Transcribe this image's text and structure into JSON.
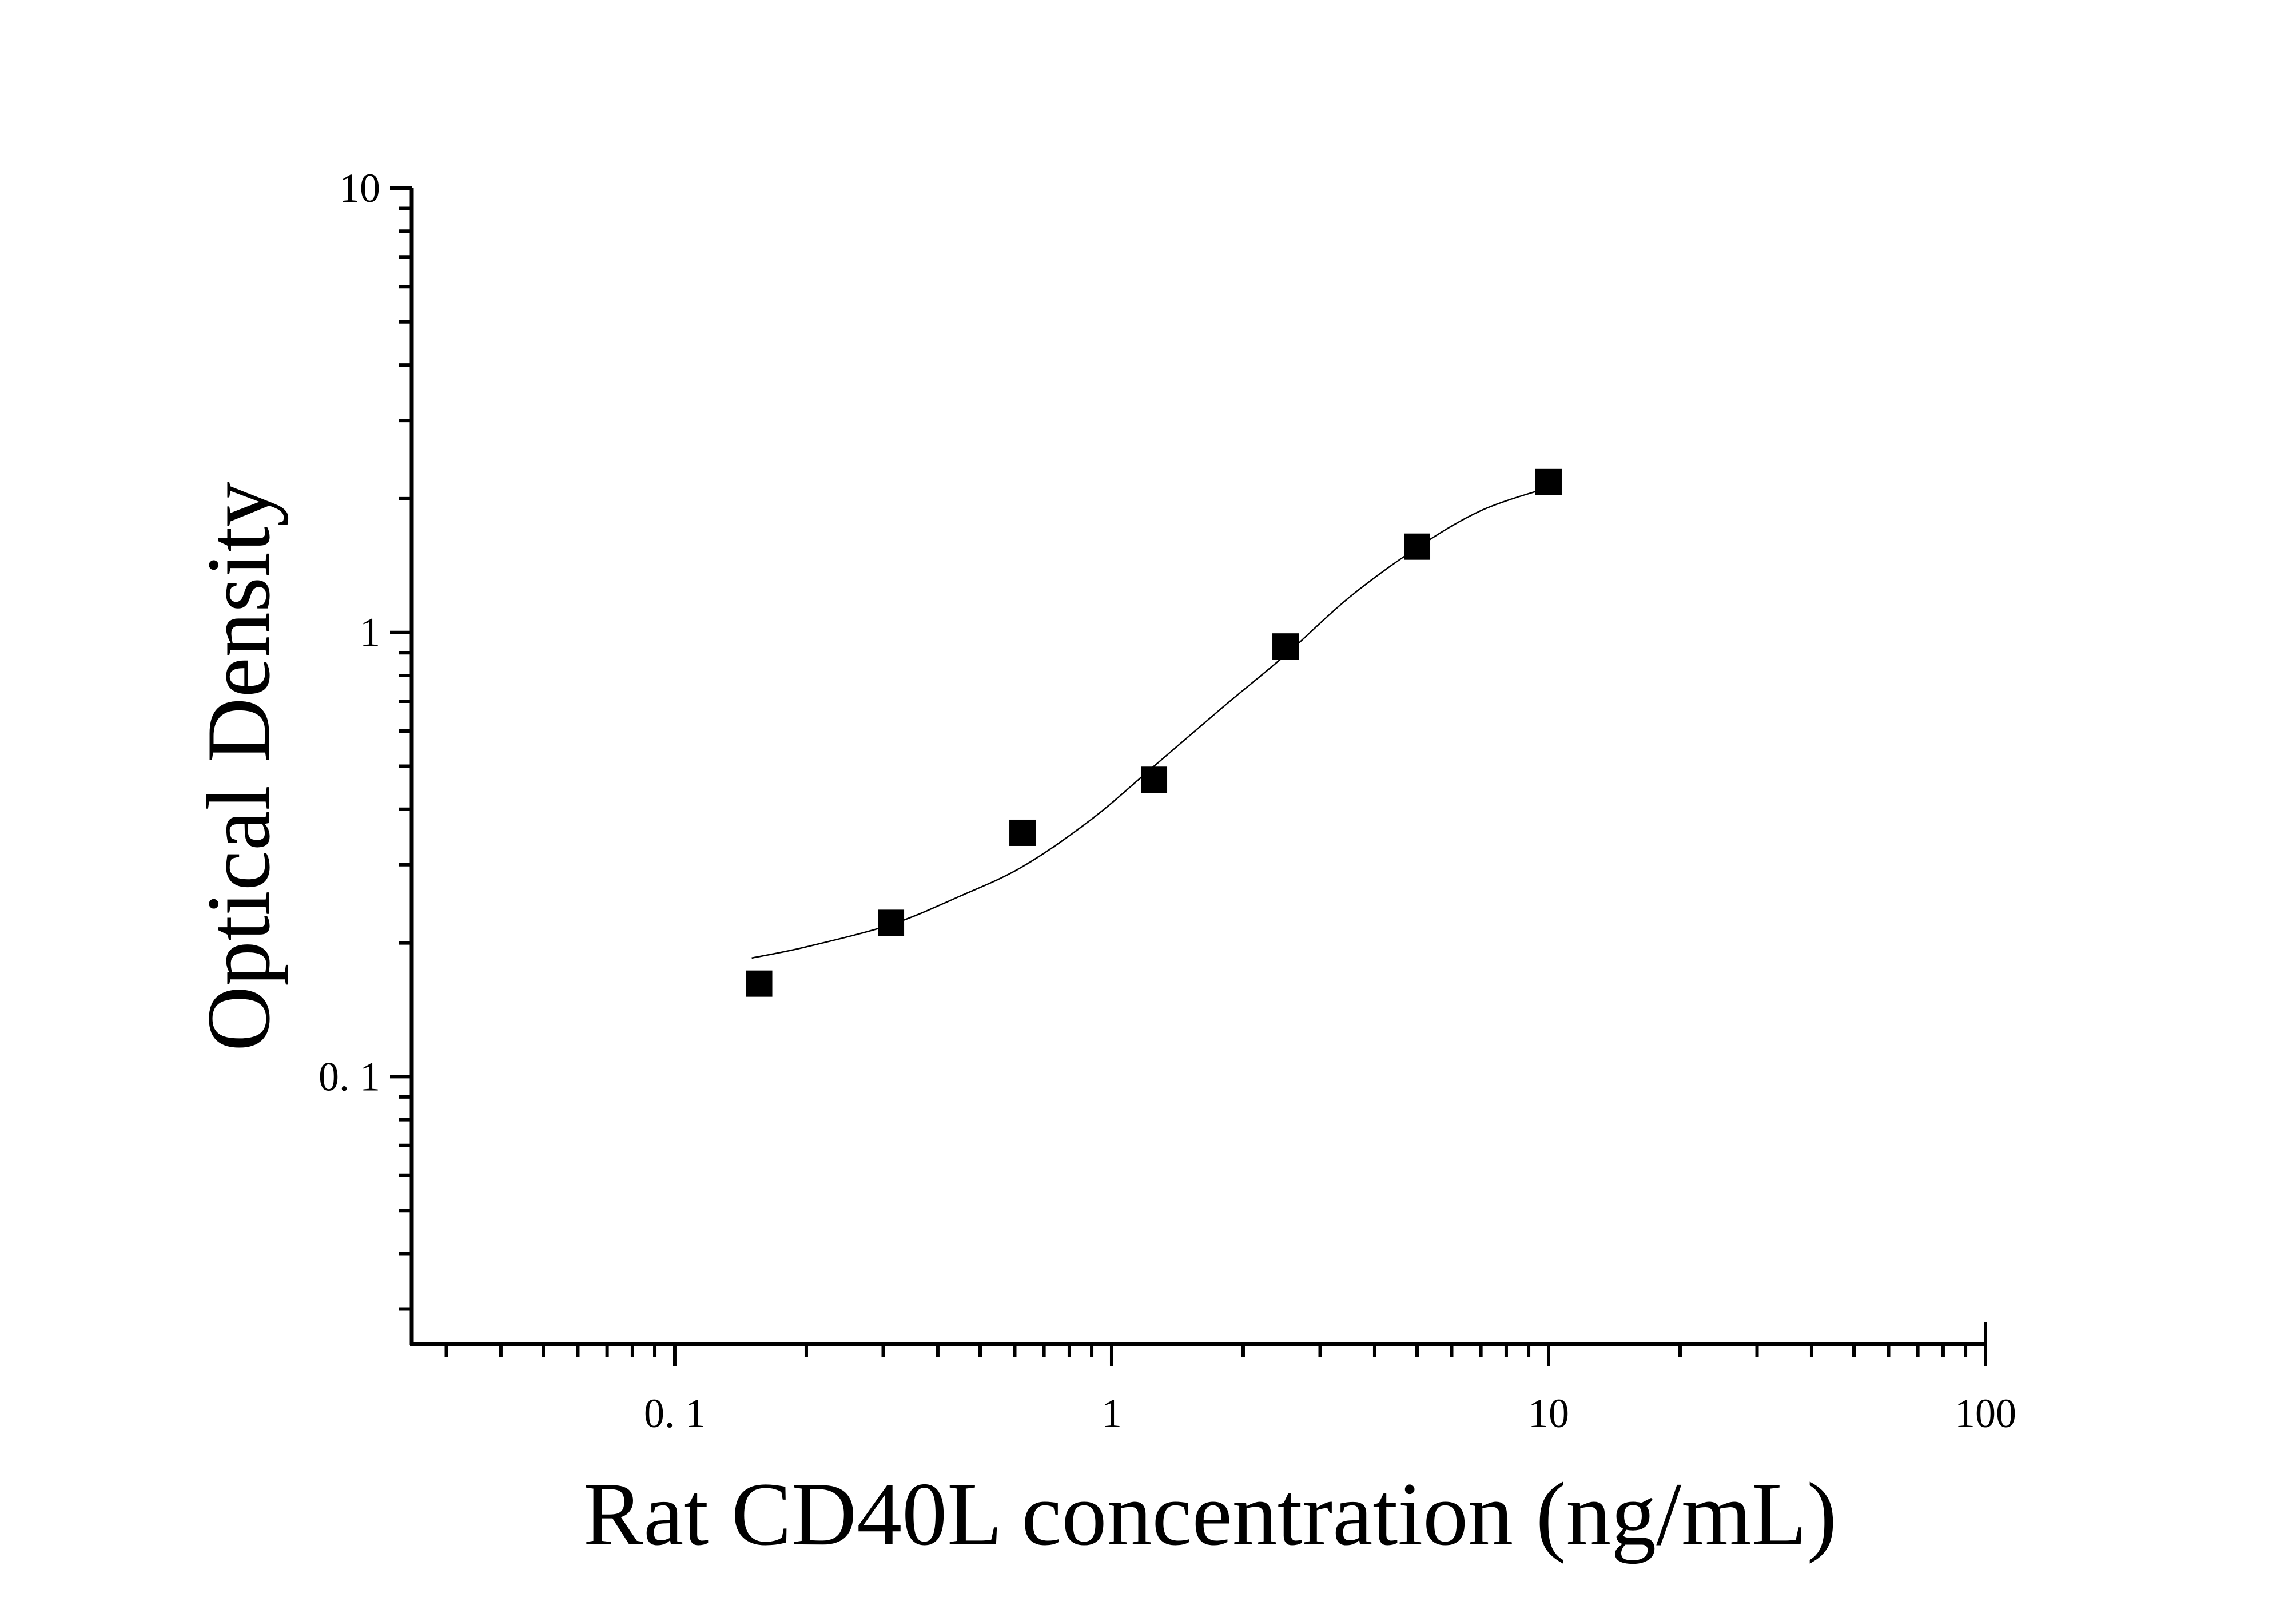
{
  "chart_data": {
    "type": "scatter",
    "xlabel": "Rat CD40L concentration (ng/mL)",
    "ylabel": "Optical Density",
    "x_scale": "log",
    "y_scale": "log",
    "xlim": [
      0.025,
      100
    ],
    "ylim": [
      0.025,
      10
    ],
    "grid": false,
    "x_ticks": [
      {
        "value": 0.1,
        "label": "0. 1"
      },
      {
        "value": 1,
        "label": "1"
      },
      {
        "value": 10,
        "label": "10"
      },
      {
        "value": 100,
        "label": "100"
      }
    ],
    "y_ticks": [
      {
        "value": 0.1,
        "label": "0. 1"
      },
      {
        "value": 1,
        "label": "1"
      },
      {
        "value": 10,
        "label": "10"
      }
    ],
    "points": {
      "x": [
        0.156,
        0.3125,
        0.625,
        1.25,
        2.5,
        5,
        10
      ],
      "y": [
        0.162,
        0.222,
        0.354,
        0.466,
        0.93,
        1.56,
        2.18
      ],
      "marker": "square",
      "color": "#000000"
    },
    "fit_curve": {
      "x": [
        0.15,
        0.2,
        0.3125,
        0.45,
        0.625,
        0.9,
        1.25,
        1.8,
        2.5,
        3.5,
        5,
        7,
        10
      ],
      "y": [
        0.185,
        0.196,
        0.22,
        0.255,
        0.297,
        0.38,
        0.5,
        0.68,
        0.89,
        1.2,
        1.55,
        1.88,
        2.12
      ],
      "color": "#000000"
    }
  }
}
